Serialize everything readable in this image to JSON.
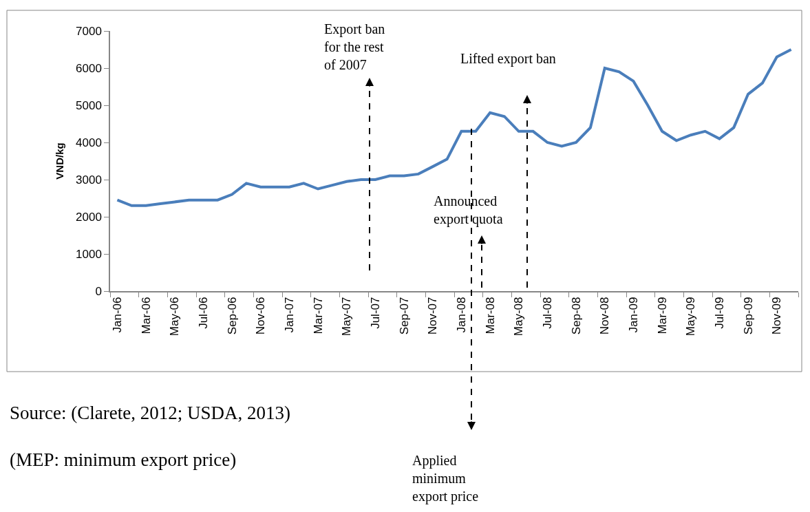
{
  "chart_data": {
    "type": "line",
    "ylabel": "VND/kg",
    "categories": [
      "Jan-06",
      null,
      "Mar-06",
      null,
      "May-06",
      null,
      "Jul-06",
      null,
      "Sep-06",
      null,
      "Nov-06",
      null,
      "Jan-07",
      null,
      "Mar-07",
      null,
      "May-07",
      null,
      "Jul-07",
      null,
      "Sep-07",
      null,
      "Nov-07",
      null,
      "Jan-08",
      null,
      "Mar-08",
      null,
      "May-08",
      null,
      "Jul-08",
      null,
      "Sep-08",
      null,
      "Nov-08",
      null,
      "Jan-09",
      null,
      "Mar-09",
      null,
      "May-09",
      null,
      "Jul-09",
      null,
      "Sep-09",
      null,
      "Nov-09",
      null
    ],
    "series": [
      {
        "color": "#4a7ebb",
        "values": [
          2450,
          2300,
          2300,
          2350,
          2400,
          2450,
          2450,
          2450,
          2600,
          2900,
          2800,
          2800,
          2800,
          2900,
          2750,
          2850,
          2950,
          3000,
          3000,
          3100,
          3100,
          3150,
          3350,
          3550,
          4300,
          4300,
          4800,
          4700,
          4300,
          4300,
          4000,
          3900,
          4000,
          4400,
          6000,
          5900,
          5650,
          5000,
          4300,
          4050,
          4200,
          4300,
          4100,
          4400,
          5300,
          5600,
          6300,
          6500
        ]
      }
    ],
    "ylim": [
      0,
      7000
    ],
    "yticks": [
      0,
      1000,
      2000,
      3000,
      4000,
      5000,
      6000,
      7000
    ],
    "marker": "none",
    "line_style": "solid",
    "annotations": [
      "Export ban\nfor the rest\nof 2007",
      "Lifted export ban",
      "Announced\nexport quota",
      "Applied\nminimum\nexport price",
      "Source: (Clarete, 2012; USDA, 2013)",
      "(MEP: minimum export price)"
    ]
  }
}
